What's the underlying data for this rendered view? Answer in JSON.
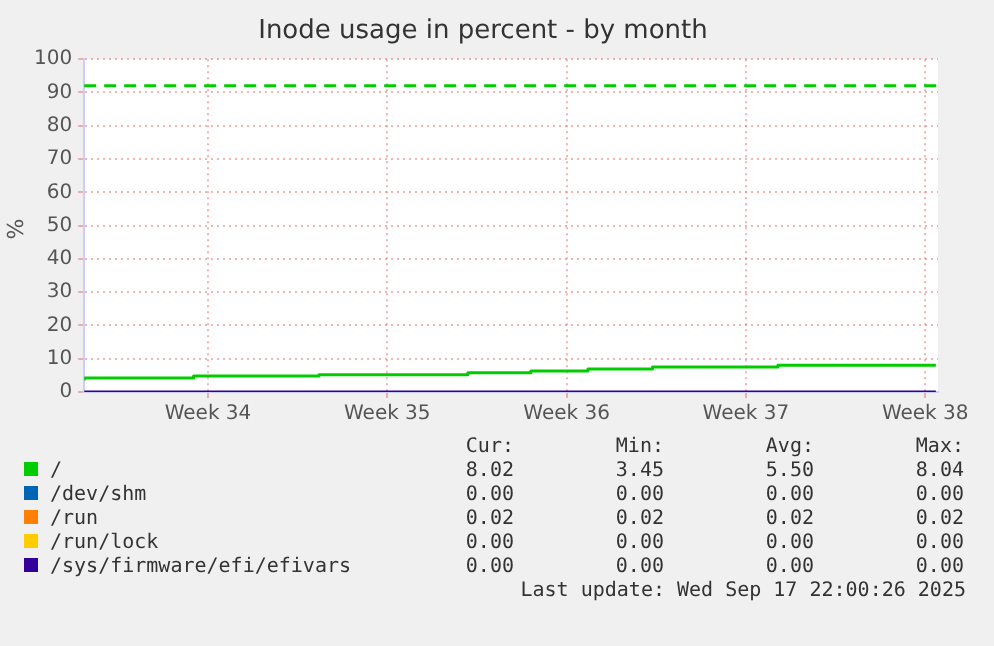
{
  "chart_data": {
    "type": "step",
    "title": "Inode usage in percent - by month",
    "ylabel": "%",
    "x": [
      "2025-08-13T04:00",
      "2025-08-17T10:30",
      "2025-08-22T08:00",
      "2025-08-28T03:30",
      "2025-08-30T14:30",
      "2025-09-01T20:00",
      "2025-09-04T08:30",
      "2025-09-09T06:00",
      "2025-09-14T07:00",
      "2025-09-15T10:00"
    ],
    "xlim": [
      "2025-08-13T04:00",
      "2025-09-15T12:00"
    ],
    "xticks": [
      {
        "value": "2025-08-18",
        "label": "Week 34"
      },
      {
        "value": "2025-08-25",
        "label": "Week 35"
      },
      {
        "value": "2025-09-01",
        "label": "Week 36"
      },
      {
        "value": "2025-09-08",
        "label": "Week 37"
      },
      {
        "value": "2025-09-15",
        "label": "Week 38"
      }
    ],
    "ylim": [
      0,
      100
    ],
    "yticks": [
      0,
      10,
      20,
      30,
      40,
      50,
      60,
      70,
      80,
      90,
      100
    ],
    "grid": true,
    "legend": "bottom",
    "series": [
      {
        "name": "/",
        "color": "#00cc00",
        "values": [
          3.45,
          4.2,
          4.8,
          5.2,
          5.8,
          6.3,
          6.9,
          7.5,
          8.04,
          8.04
        ]
      },
      {
        "name": "/dev/shm",
        "color": "#0066b3",
        "values": [
          null,
          null,
          null,
          null,
          null,
          null,
          null,
          null,
          null,
          null
        ]
      },
      {
        "name": "/run",
        "color": "#ff8000",
        "values": [
          null,
          null,
          null,
          null,
          null,
          null,
          null,
          null,
          null,
          null
        ]
      },
      {
        "name": "/run/lock",
        "color": "#ffcc00",
        "values": [
          null,
          null,
          null,
          null,
          null,
          null,
          null,
          null,
          null,
          null
        ]
      },
      {
        "name": "/sys/firmware/efi/efivars",
        "color": "#330099",
        "values": [
          0,
          0,
          0,
          0,
          0,
          0,
          0,
          0,
          0,
          0
        ]
      }
    ],
    "ref_lines": [
      {
        "axis": "y",
        "value": 92,
        "color": "#00cc00",
        "line_style": "dashed"
      }
    ],
    "annotations": [
      "Cur:",
      "Min:",
      "Avg:",
      "Max:",
      "8.02",
      "3.45",
      "5.50",
      "8.04",
      "0.00",
      "0.00",
      "0.00",
      "0.00",
      "0.02",
      "0.02",
      "0.02",
      "0.02",
      "0.00",
      "0.00",
      "0.00",
      "0.00",
      "0.00",
      "0.00",
      "0.00",
      "0.00",
      "Last update: Wed Sep 17 22:00:26 2025"
    ]
  }
}
